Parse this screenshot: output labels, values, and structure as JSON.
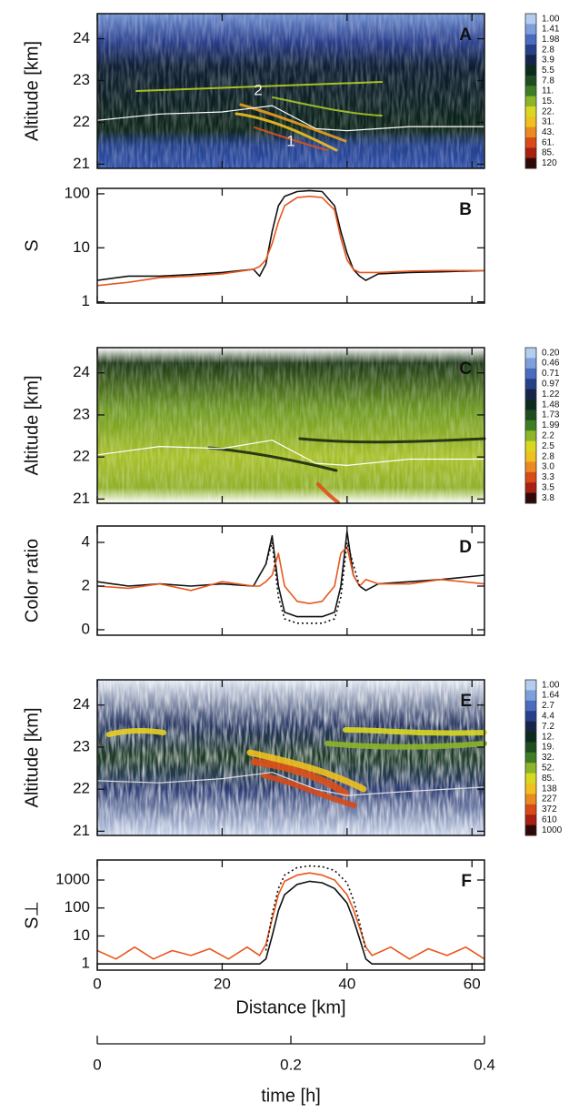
{
  "chart_data": [
    {
      "type": "heatmap",
      "panel_label": "A",
      "ylabel": "Altitude [km]",
      "ylim": [
        20.9,
        24.6
      ],
      "yticks": [
        21,
        22,
        23,
        24
      ],
      "xlim": [
        0,
        62
      ],
      "xticks": [
        0,
        20,
        40,
        60
      ],
      "x": [
        0,
        10,
        20,
        28,
        35,
        40,
        50,
        62
      ],
      "series": [
        {
          "color": "#ffffff",
          "values": [
            22.05,
            22.2,
            22.25,
            22.4,
            21.85,
            21.8,
            21.9,
            21.9
          ]
        }
      ],
      "annotations": [
        "2",
        "1"
      ],
      "colorbar_labels": [
        "1.00",
        "1.41",
        "1.98",
        "2.8",
        "3.9",
        "5.5",
        "7.8",
        "11.",
        "15.",
        "22.",
        "31.",
        "43.",
        "61.",
        "85.",
        "120"
      ],
      "colorbar_colors": [
        "#b4cdee",
        "#7d9fdc",
        "#4a6cc0",
        "#27408a",
        "#16244a",
        "#0e2a1c",
        "#1e4d20",
        "#3f7d22",
        "#8cb52a",
        "#d9d820",
        "#f0c020",
        "#eb8a20",
        "#d84a18",
        "#a82010",
        "#300808"
      ]
    },
    {
      "type": "line",
      "panel_label": "B",
      "ylabel": "S",
      "log": true,
      "ylim": [
        0.95,
        126
      ],
      "yticks": [
        1,
        10,
        100
      ],
      "xlim": [
        0,
        62
      ],
      "xticks": [
        0,
        20,
        40,
        60
      ],
      "x": [
        0,
        5,
        10,
        15,
        20,
        25,
        26,
        27,
        28,
        29,
        30,
        32,
        34,
        36,
        38,
        39,
        40,
        41,
        42,
        43,
        45,
        50,
        55,
        62
      ],
      "series": [
        {
          "color": "#111111",
          "values": [
            2.5,
            3,
            3,
            3.2,
            3.5,
            4,
            3,
            5,
            20,
            60,
            90,
            110,
            115,
            110,
            60,
            20,
            8,
            4,
            3,
            2.5,
            3.3,
            3.5,
            3.6,
            3.8
          ]
        },
        {
          "color": "#e8561e",
          "values": [
            2,
            2.3,
            2.8,
            3,
            3.3,
            4,
            4.5,
            6,
            12,
            30,
            60,
            85,
            90,
            85,
            50,
            15,
            6,
            4,
            3.5,
            3.5,
            3.5,
            3.7,
            3.8,
            3.8
          ]
        }
      ]
    },
    {
      "type": "heatmap",
      "panel_label": "C",
      "ylabel": "Altitude [km]",
      "ylim": [
        20.9,
        24.6
      ],
      "yticks": [
        21,
        22,
        23,
        24
      ],
      "xlim": [
        0,
        62
      ],
      "xticks": [
        0,
        20,
        40,
        60
      ],
      "x": [
        0,
        10,
        20,
        28,
        35,
        40,
        50,
        62
      ],
      "series": [
        {
          "color": "#ffffff",
          "values": [
            22.05,
            22.25,
            22.2,
            22.4,
            21.85,
            21.8,
            21.95,
            21.95
          ]
        }
      ],
      "colorbar_labels": [
        "0.20",
        "0.46",
        "0.71",
        "0.97",
        "1.22",
        "1.48",
        "1.73",
        "1.99",
        "2.2",
        "2.5",
        "2.8",
        "3.0",
        "3.3",
        "3.5",
        "3.8"
      ],
      "colorbar_colors": [
        "#b4cdee",
        "#7d9fdc",
        "#4a6cc0",
        "#27408a",
        "#16244a",
        "#0e2a1c",
        "#1e4d20",
        "#3f7d22",
        "#8cb52a",
        "#d9d820",
        "#f0c020",
        "#eb8a20",
        "#d84a18",
        "#a82010",
        "#300808"
      ]
    },
    {
      "type": "line",
      "panel_label": "D",
      "ylabel": "Color ratio",
      "ylim": [
        -0.25,
        4.75
      ],
      "yticks": [
        0,
        2,
        4
      ],
      "xlim": [
        0,
        62
      ],
      "xticks": [
        0,
        20,
        40,
        60
      ],
      "x": [
        0,
        5,
        10,
        15,
        20,
        25,
        26,
        27,
        28,
        29,
        30,
        32,
        34,
        36,
        38,
        39,
        40,
        41,
        42,
        43,
        45,
        50,
        55,
        62
      ],
      "series": [
        {
          "color": "#111111",
          "values": [
            2.2,
            2,
            2.1,
            2,
            2.1,
            2,
            2.5,
            3,
            4.3,
            2,
            0.8,
            0.6,
            0.6,
            0.6,
            0.8,
            2,
            4.5,
            2.5,
            2,
            1.8,
            2.1,
            2.2,
            2.3,
            2.5
          ]
        },
        {
          "color": "#e8561e",
          "values": [
            2,
            1.9,
            2.1,
            1.8,
            2.2,
            2,
            2,
            2.2,
            2.5,
            3.5,
            2,
            1.3,
            1.2,
            1.3,
            2,
            3.5,
            3.8,
            2.5,
            2,
            2.3,
            2.1,
            2.1,
            2.3,
            2.1
          ]
        },
        {
          "color": "#111111",
          "dash": true,
          "values": [
            null,
            null,
            null,
            null,
            null,
            null,
            null,
            3,
            4,
            1.5,
            0.5,
            0.3,
            0.3,
            0.3,
            0.5,
            1.5,
            4,
            3,
            2,
            null,
            null,
            null,
            null,
            null
          ]
        }
      ]
    },
    {
      "type": "heatmap",
      "panel_label": "E",
      "ylabel": "Altitude [km]",
      "ylim": [
        20.9,
        24.6
      ],
      "yticks": [
        21,
        22,
        23,
        24
      ],
      "xlim": [
        0,
        62
      ],
      "xticks": [
        0,
        20,
        40,
        60
      ],
      "x": [
        0,
        10,
        20,
        28,
        35,
        40,
        50,
        62
      ],
      "series": [
        {
          "color": "#dddddd",
          "values": [
            22.2,
            22.15,
            22.25,
            22.4,
            22,
            21.85,
            21.95,
            22.05
          ]
        }
      ],
      "colorbar_labels": [
        "1.00",
        "1.64",
        "2.7",
        "4.4",
        "7.2",
        "12.",
        "19.",
        "32.",
        "52.",
        "85.",
        "138",
        "227",
        "372",
        "610",
        "1000"
      ],
      "colorbar_colors": [
        "#b4cdee",
        "#7d9fdc",
        "#4a6cc0",
        "#27408a",
        "#16244a",
        "#0e2a1c",
        "#1e4d20",
        "#3f7d22",
        "#8cb52a",
        "#d9d820",
        "#f0c020",
        "#eb8a20",
        "#d84a18",
        "#a82010",
        "#300808"
      ]
    },
    {
      "type": "line",
      "panel_label": "F",
      "ylabel": "S⊥",
      "log": true,
      "ylim": [
        0.6,
        5200
      ],
      "yticks": [
        1,
        10,
        100,
        1000
      ],
      "xlim": [
        0,
        62
      ],
      "xticks": [
        0,
        20,
        40,
        60
      ],
      "xtick_labels": true,
      "xlabel": "Distance [km]",
      "x": [
        0,
        3,
        6,
        9,
        12,
        15,
        18,
        21,
        24,
        26,
        27,
        28,
        29,
        30,
        32,
        34,
        36,
        38,
        40,
        41,
        42,
        43,
        44,
        47,
        50,
        53,
        56,
        59,
        62
      ],
      "series": [
        {
          "color": "#111111",
          "values": [
            1,
            1,
            1,
            1,
            1,
            1,
            1,
            1,
            1,
            1,
            1.5,
            10,
            80,
            300,
            700,
            900,
            800,
            500,
            150,
            40,
            8,
            1.5,
            1,
            1,
            1,
            1,
            1,
            1,
            1
          ]
        },
        {
          "color": "#e8561e",
          "values": [
            3,
            1.5,
            4,
            1.5,
            3,
            2,
            3.5,
            1.5,
            4,
            2,
            5,
            40,
            300,
            900,
            1500,
            1800,
            1500,
            1000,
            300,
            90,
            20,
            4,
            2,
            4,
            1.5,
            3.5,
            2,
            4,
            1.5
          ]
        },
        {
          "color": "#111111",
          "dash": true,
          "values": [
            null,
            null,
            null,
            null,
            null,
            null,
            null,
            null,
            null,
            null,
            3,
            60,
            500,
            1500,
            2800,
            3200,
            3000,
            2200,
            800,
            200,
            30,
            3,
            null,
            null,
            null,
            null,
            null,
            null,
            null
          ]
        }
      ]
    },
    {
      "type": "axis",
      "xlabel": "time [h]",
      "xlim": [
        0,
        0.4
      ],
      "xticks": [
        0,
        0.2,
        0.4
      ]
    }
  ]
}
